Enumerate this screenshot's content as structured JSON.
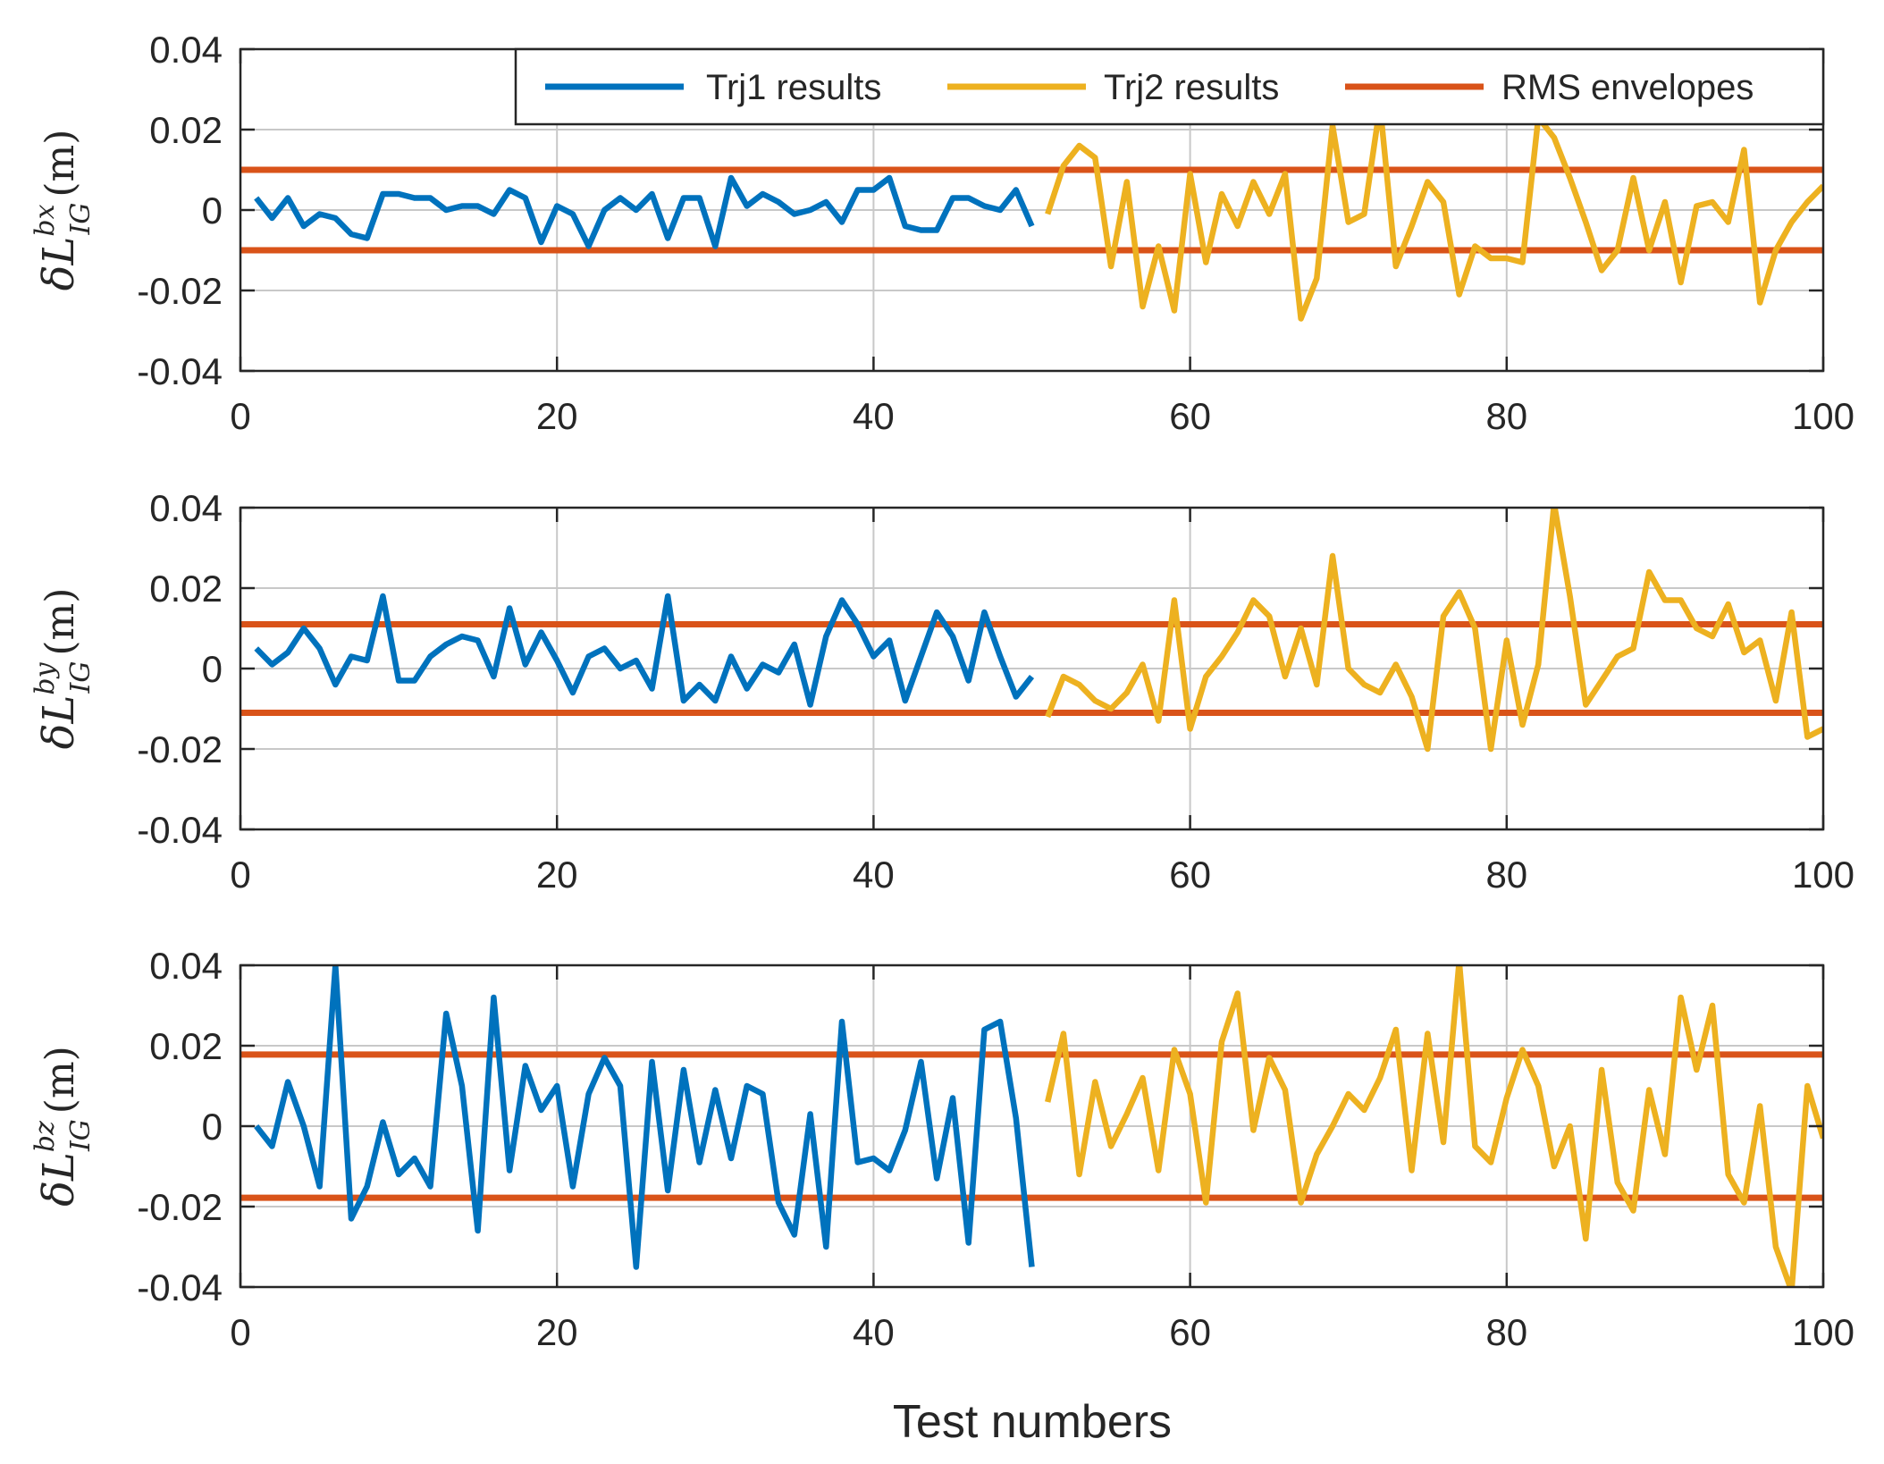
{
  "chart_data": {
    "type": "line",
    "xlabel": "Test numbers",
    "xlim": [
      0,
      100
    ],
    "xticks": [
      0,
      20,
      40,
      60,
      80,
      100
    ],
    "ylim": [
      -0.04,
      0.04
    ],
    "yticks": [
      "-0.04",
      "-0.02",
      "0",
      "0.02",
      "0.04"
    ],
    "grid": true,
    "legend": {
      "placement": "top-right",
      "entries": [
        {
          "name": "Trj1 results",
          "color": "#0072BD"
        },
        {
          "name": "Trj2 results",
          "color": "#EDB120"
        },
        {
          "name": "RMS envelopes",
          "color": "#D95319"
        }
      ]
    },
    "panels": [
      {
        "ylabel": {
          "symbol": "δL",
          "sup": "bx",
          "sub": "IG",
          "unit": "(m)"
        },
        "rms": 0.01,
        "trj1": [
          0.003,
          -0.002,
          0.003,
          -0.004,
          -0.001,
          -0.002,
          -0.006,
          -0.007,
          0.004,
          0.004,
          0.003,
          0.003,
          0.0,
          0.001,
          0.001,
          -0.001,
          0.005,
          0.003,
          -0.008,
          0.001,
          -0.001,
          -0.009,
          0.0,
          0.003,
          0.0,
          0.004,
          -0.007,
          0.003,
          0.003,
          -0.009,
          0.008,
          0.001,
          0.004,
          0.002,
          -0.001,
          0.0,
          0.002,
          -0.003,
          0.005,
          0.005,
          0.008,
          -0.004,
          -0.005,
          -0.005,
          0.003,
          0.003,
          0.001,
          0.0,
          0.005,
          -0.004
        ],
        "trj2": [
          -0.001,
          0.011,
          0.016,
          0.013,
          -0.014,
          0.007,
          -0.024,
          -0.009,
          -0.025,
          0.009,
          -0.013,
          0.004,
          -0.004,
          0.007,
          -0.001,
          0.009,
          -0.027,
          -0.017,
          0.021,
          -0.003,
          -0.001,
          0.026,
          -0.014,
          -0.004,
          0.007,
          0.002,
          -0.021,
          -0.009,
          -0.012,
          -0.012,
          -0.013,
          0.023,
          0.018,
          0.008,
          -0.003,
          -0.015,
          -0.01,
          0.008,
          -0.01,
          0.002,
          -0.018,
          0.001,
          0.002,
          -0.003,
          0.015,
          -0.023,
          -0.01,
          -0.003,
          0.002,
          0.006
        ]
      },
      {
        "ylabel": {
          "symbol": "δL",
          "sup": "by",
          "sub": "IG",
          "unit": "(m)"
        },
        "rms": 0.011,
        "trj1": [
          0.005,
          0.001,
          0.004,
          0.01,
          0.005,
          -0.004,
          0.003,
          0.002,
          0.018,
          -0.003,
          -0.003,
          0.003,
          0.006,
          0.008,
          0.007,
          -0.002,
          0.015,
          0.001,
          0.009,
          0.002,
          -0.006,
          0.003,
          0.005,
          0.0,
          0.002,
          -0.005,
          0.018,
          -0.008,
          -0.004,
          -0.008,
          0.003,
          -0.005,
          0.001,
          -0.001,
          0.006,
          -0.009,
          0.008,
          0.017,
          0.011,
          0.003,
          0.007,
          -0.008,
          0.003,
          0.014,
          0.008,
          -0.003,
          0.014,
          0.003,
          -0.007,
          -0.002
        ],
        "trj2": [
          -0.012,
          -0.002,
          -0.004,
          -0.008,
          -0.01,
          -0.006,
          0.001,
          -0.013,
          0.017,
          -0.015,
          -0.002,
          0.003,
          0.009,
          0.017,
          0.013,
          -0.002,
          0.01,
          -0.004,
          0.028,
          0.0,
          -0.004,
          -0.006,
          0.001,
          -0.007,
          -0.02,
          0.013,
          0.019,
          0.01,
          -0.02,
          0.007,
          -0.014,
          0.001,
          0.041,
          0.018,
          -0.009,
          -0.003,
          0.003,
          0.005,
          0.024,
          0.017,
          0.017,
          0.01,
          0.008,
          0.016,
          0.004,
          0.007,
          -0.008,
          0.014,
          -0.017,
          -0.015
        ]
      },
      {
        "ylabel": {
          "symbol": "δL",
          "sup": "bz",
          "sub": "IG",
          "unit": "(m)"
        },
        "rms": 0.0178,
        "trj1": [
          0.0,
          -0.005,
          0.011,
          0.0,
          -0.015,
          0.04,
          -0.023,
          -0.015,
          0.001,
          -0.012,
          -0.008,
          -0.015,
          0.028,
          0.01,
          -0.026,
          0.032,
          -0.011,
          0.015,
          0.004,
          0.01,
          -0.015,
          0.008,
          0.017,
          0.01,
          -0.035,
          0.016,
          -0.016,
          0.014,
          -0.009,
          0.009,
          -0.008,
          0.01,
          0.008,
          -0.019,
          -0.027,
          0.003,
          -0.03,
          0.026,
          -0.009,
          -0.008,
          -0.011,
          -0.001,
          0.016,
          -0.013,
          0.007,
          -0.029,
          0.024,
          0.026,
          0.002,
          -0.035
        ],
        "trj2": [
          0.006,
          0.023,
          -0.012,
          0.011,
          -0.005,
          0.003,
          0.012,
          -0.011,
          0.019,
          0.008,
          -0.019,
          0.021,
          0.033,
          -0.001,
          0.017,
          0.009,
          -0.019,
          -0.007,
          0.0,
          0.008,
          0.004,
          0.012,
          0.024,
          -0.011,
          0.023,
          -0.004,
          0.041,
          -0.005,
          -0.009,
          0.007,
          0.019,
          0.01,
          -0.01,
          0.0,
          -0.028,
          0.014,
          -0.014,
          -0.021,
          0.009,
          -0.007,
          0.032,
          0.014,
          0.03,
          -0.012,
          -0.019,
          0.005,
          -0.03,
          -0.041,
          0.01,
          -0.003
        ]
      }
    ]
  }
}
